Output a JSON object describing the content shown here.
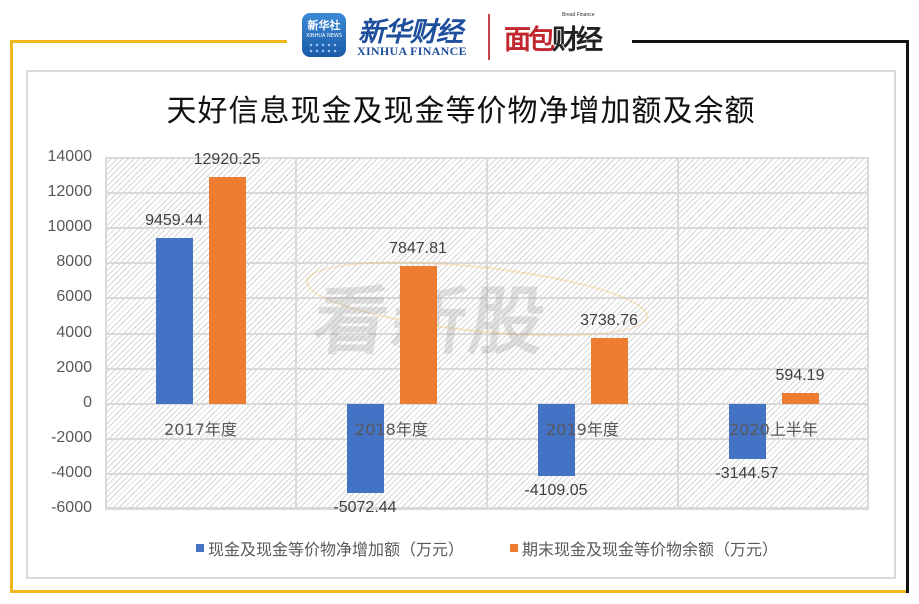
{
  "header": {
    "xinhua_logo_box": {
      "line1": "新华社",
      "line2": "XINHUA NEWS"
    },
    "xinhua_finance_cn": "新华财经",
    "xinhua_finance_en": "XINHUA FINANCE",
    "bread_finance_en": "Bread Finance",
    "bread_finance_cn_a": "面包",
    "bread_finance_cn_b": "财经"
  },
  "watermark": "看新股",
  "colors": {
    "series0": "#4472c4",
    "series1": "#ed7d31",
    "frame_yellow": "#f0b71b",
    "frame_black": "#111111",
    "grid": "#d9d9d9"
  },
  "chart_data": {
    "type": "bar",
    "title": "天好信息现金及现金等价物净增加额及余额",
    "xlabel": "",
    "ylabel": "",
    "categories": [
      "2017年度",
      "2018年度",
      "2019年度",
      "2020上半年"
    ],
    "series": [
      {
        "name": "现金及现金等价物净增加额（万元）",
        "values": [
          9459.44,
          -5072.44,
          -4109.05,
          -3144.57
        ]
      },
      {
        "name": "期末现金及现金等价物余额（万元）",
        "values": [
          12920.25,
          7847.81,
          3738.76,
          594.19
        ]
      }
    ],
    "data_labels": [
      [
        "9459.44",
        "-5072.44",
        "-4109.05",
        "-3144.57"
      ],
      [
        "12920.25",
        "7847.81",
        "3738.76",
        "594.19"
      ]
    ],
    "ylim": [
      -6000,
      14000
    ],
    "yticks": [
      "14000",
      "12000",
      "10000",
      "8000",
      "6000",
      "4000",
      "2000",
      "0",
      "-2000",
      "-4000",
      "-6000"
    ],
    "grid": true,
    "legend_position": "bottom"
  }
}
